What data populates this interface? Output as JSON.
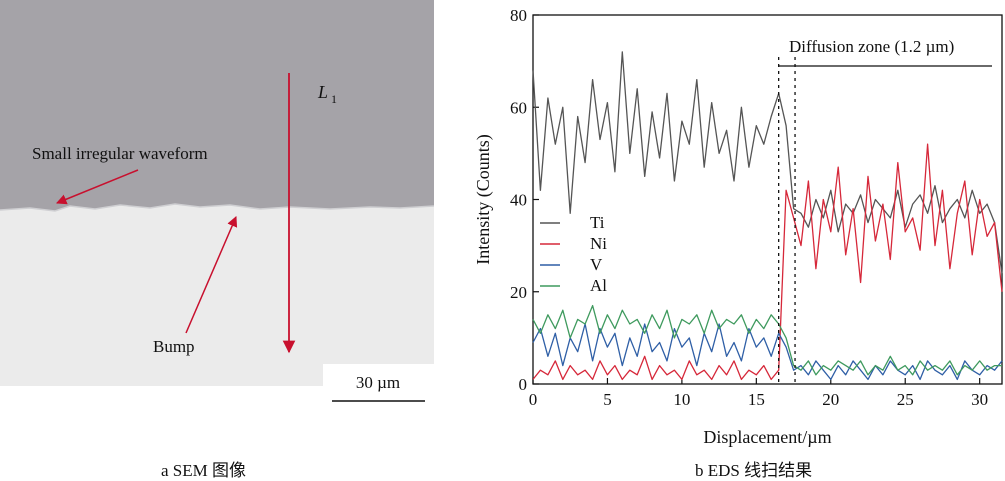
{
  "sem": {
    "annotations": {
      "l1_main": "L",
      "l1_sub": "1",
      "waveform": "Small irregular waveform",
      "bump": "Bump"
    },
    "scale_bar": "30 µm",
    "caption": "a  SEM 图像",
    "colors": {
      "top_phase": "#a5a3a8",
      "bottom_phase": "#ebebeb",
      "arrow": "#c8102e"
    }
  },
  "eds": {
    "caption": "b  EDS 线扫结果"
  },
  "chart_data": {
    "type": "line",
    "title": "",
    "xlabel": "Displacement/µm",
    "ylabel": "Intensity (Counts)",
    "xlim": [
      0,
      31.5
    ],
    "ylim": [
      0,
      80
    ],
    "xticks": [
      "0",
      "5",
      "10",
      "15",
      "20",
      "25",
      "30"
    ],
    "yticks": [
      "0",
      "20",
      "40",
      "60",
      "80"
    ],
    "annotation": "Diffusion zone (1.2 µm)",
    "diffusion_zone": [
      16.5,
      17.6
    ],
    "legend_position": "left",
    "x": [
      0.0,
      0.5,
      1.0,
      1.5,
      2.0,
      2.5,
      3.0,
      3.5,
      4.0,
      4.5,
      5.0,
      5.5,
      6.0,
      6.5,
      7.0,
      7.5,
      8.0,
      8.5,
      9.0,
      9.5,
      10.0,
      10.5,
      11.0,
      11.5,
      12.0,
      12.5,
      13.0,
      13.5,
      14.0,
      14.5,
      15.0,
      15.5,
      16.0,
      16.5,
      17.0,
      17.5,
      18.0,
      18.5,
      19.0,
      19.5,
      20.0,
      20.5,
      21.0,
      21.5,
      22.0,
      22.5,
      23.0,
      23.5,
      24.0,
      24.5,
      25.0,
      25.5,
      26.0,
      26.5,
      27.0,
      27.5,
      28.0,
      28.5,
      29.0,
      29.5,
      30.0,
      30.5,
      31.0,
      31.5
    ],
    "series": [
      {
        "name": "Ti",
        "color": "#555555",
        "values": [
          68,
          42,
          62,
          52,
          60,
          37,
          58,
          48,
          66,
          53,
          61,
          46,
          72,
          50,
          64,
          45,
          59,
          49,
          63,
          44,
          57,
          52,
          66,
          47,
          61,
          50,
          55,
          44,
          60,
          47,
          56,
          52,
          58,
          63,
          56,
          38,
          37,
          34,
          40,
          36,
          42,
          33,
          39,
          37,
          41,
          35,
          40,
          38,
          36,
          42,
          34,
          39,
          41,
          37,
          43,
          35,
          38,
          40,
          36,
          42,
          37,
          39,
          35,
          24
        ]
      },
      {
        "name": "Ni",
        "color": "#d6283a",
        "values": [
          1,
          3,
          2,
          5,
          1,
          4,
          2,
          3,
          1,
          5,
          2,
          4,
          1,
          3,
          2,
          6,
          1,
          4,
          2,
          3,
          1,
          5,
          2,
          3,
          1,
          4,
          2,
          5,
          1,
          3,
          2,
          4,
          1,
          3,
          42,
          36,
          30,
          44,
          25,
          40,
          33,
          47,
          28,
          38,
          22,
          45,
          31,
          39,
          27,
          48,
          33,
          36,
          29,
          52,
          30,
          42,
          25,
          37,
          44,
          28,
          40,
          32,
          35,
          20
        ]
      },
      {
        "name": "V",
        "color": "#2f5fa6",
        "values": [
          9,
          12,
          6,
          11,
          4,
          10,
          7,
          13,
          5,
          12,
          8,
          11,
          4,
          10,
          6,
          13,
          7,
          9,
          5,
          12,
          8,
          10,
          4,
          11,
          7,
          13,
          6,
          9,
          5,
          12,
          8,
          10,
          6,
          11,
          8,
          3,
          4,
          2,
          5,
          3,
          1,
          4,
          2,
          5,
          3,
          1,
          4,
          2,
          5,
          3,
          2,
          4,
          1,
          5,
          3,
          2,
          4,
          1,
          5,
          3,
          2,
          4,
          3,
          5
        ]
      },
      {
        "name": "Al",
        "color": "#3f9a5e",
        "values": [
          14,
          11,
          15,
          12,
          16,
          10,
          14,
          13,
          17,
          11,
          15,
          12,
          16,
          13,
          14,
          11,
          15,
          12,
          16,
          10,
          14,
          13,
          15,
          11,
          16,
          12,
          14,
          13,
          15,
          11,
          14,
          12,
          15,
          13,
          10,
          4,
          3,
          5,
          2,
          4,
          3,
          5,
          4,
          3,
          5,
          2,
          4,
          3,
          6,
          3,
          4,
          2,
          5,
          3,
          4,
          3,
          5,
          2,
          4,
          3,
          5,
          3,
          4,
          4
        ]
      }
    ]
  }
}
